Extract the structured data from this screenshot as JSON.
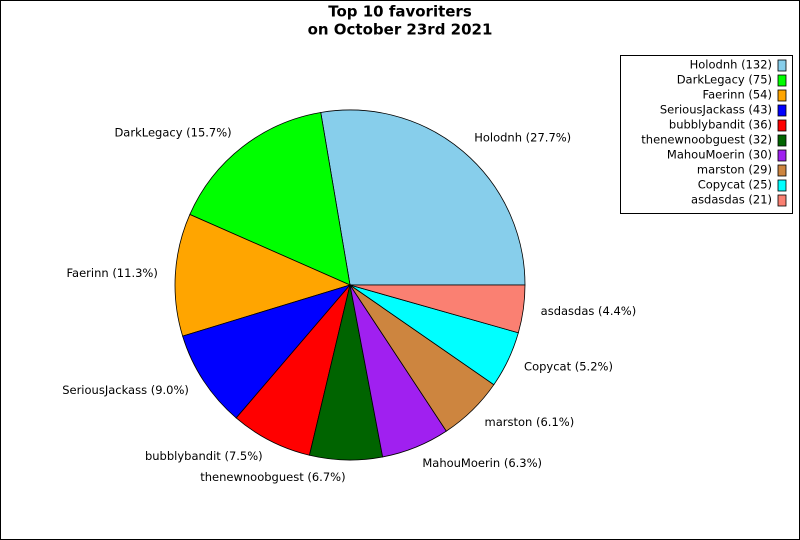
{
  "chart_data": {
    "type": "pie",
    "title": [
      "Top 10 favoriters",
      "on October 23rd 2021"
    ],
    "values": [
      132,
      75,
      54,
      43,
      36,
      32,
      30,
      29,
      25,
      21
    ],
    "value_labels": [
      "Holodnh (27.7%)",
      "DarkLegacy (15.7%)",
      "Faerinn (11.3%)",
      "SeriousJackass (9.0%)",
      "bubblybandit (7.5%)",
      "thenewnoobguest (6.7%)",
      "MahouMoerin (6.3%)",
      "marston (6.1%)",
      "Copycat (5.2%)",
      "asdasdas (4.4%)"
    ],
    "legend_labels": [
      "Holodnh (132)",
      "DarkLegacy (75)",
      "Faerinn (54)",
      "SeriousJackass (43)",
      "bubblybandit (36)",
      "thenewnoobguest (32)",
      "MahouMoerin (30)",
      "marston (29)",
      "Copycat (25)",
      "asdasdas (21)"
    ],
    "colors": [
      "#87ceeb",
      "#00ff00",
      "#ffa500",
      "#0000ff",
      "#ff0000",
      "#006400",
      "#a020f0",
      "#cd853f",
      "#00ffff",
      "#fa8072"
    ],
    "legend": "upper right"
  }
}
